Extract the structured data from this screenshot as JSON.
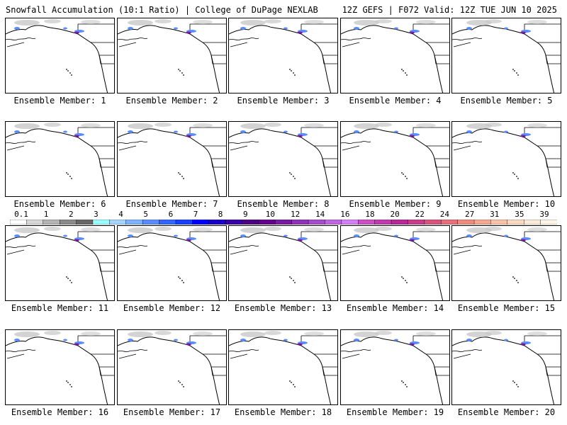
{
  "header": {
    "left_title": "Snowfall Accumulation (10:1 Ratio) | College of DuPage NEXLAB",
    "right_title": "12Z GEFS | F072 Valid: 12Z TUE JUN 10 2025"
  },
  "panels": [
    {
      "caption": "Ensemble Member: 1"
    },
    {
      "caption": "Ensemble Member: 2"
    },
    {
      "caption": "Ensemble Member: 3"
    },
    {
      "caption": "Ensemble Member: 4"
    },
    {
      "caption": "Ensemble Member: 5"
    },
    {
      "caption": "Ensemble Member: 6"
    },
    {
      "caption": "Ensemble Member: 7"
    },
    {
      "caption": "Ensemble Member: 8"
    },
    {
      "caption": "Ensemble Member: 9"
    },
    {
      "caption": "Ensemble Member: 10"
    },
    {
      "caption": "Ensemble Member: 11"
    },
    {
      "caption": "Ensemble Member: 12"
    },
    {
      "caption": "Ensemble Member: 13"
    },
    {
      "caption": "Ensemble Member: 14"
    },
    {
      "caption": "Ensemble Member: 15"
    },
    {
      "caption": "Ensemble Member: 16"
    },
    {
      "caption": "Ensemble Member: 17"
    },
    {
      "caption": "Ensemble Member: 18"
    },
    {
      "caption": "Ensemble Member: 19"
    },
    {
      "caption": "Ensemble Member: 20"
    }
  ],
  "legend": {
    "labels": [
      "0.1",
      "1",
      "2",
      "3",
      "4",
      "5",
      "6",
      "7",
      "8",
      "9",
      "10",
      "12",
      "14",
      "16",
      "18",
      "20",
      "22",
      "24",
      "27",
      "31",
      "35",
      "39"
    ],
    "colors": [
      "#ffffff",
      "#d8d8d8",
      "#b4b4b4",
      "#8c8c8c",
      "#686868",
      "#99ffff",
      "#a6d4ff",
      "#7fb2ff",
      "#5a8cff",
      "#3366ff",
      "#1a40ff",
      "#0000ff",
      "#1a00c8",
      "#3800a8",
      "#4d0080",
      "#66008c",
      "#7a1aa3",
      "#8f33b8",
      "#a64dcc",
      "#bd66e0",
      "#d47ff5",
      "#cc4fc4",
      "#c23bae",
      "#b82896",
      "#c93d8a",
      "#d9537f",
      "#e66f7a",
      "#ef8c80",
      "#f5a890",
      "#fac3a8",
      "#fcd9c3",
      "#fdebd9",
      "#fff5e8"
    ]
  },
  "colors": {
    "snow_gray": "#c8c8c8",
    "snow_blue": "#5a8cff",
    "snow_purple": "#7a1aa3",
    "coast_line": "#000000"
  }
}
